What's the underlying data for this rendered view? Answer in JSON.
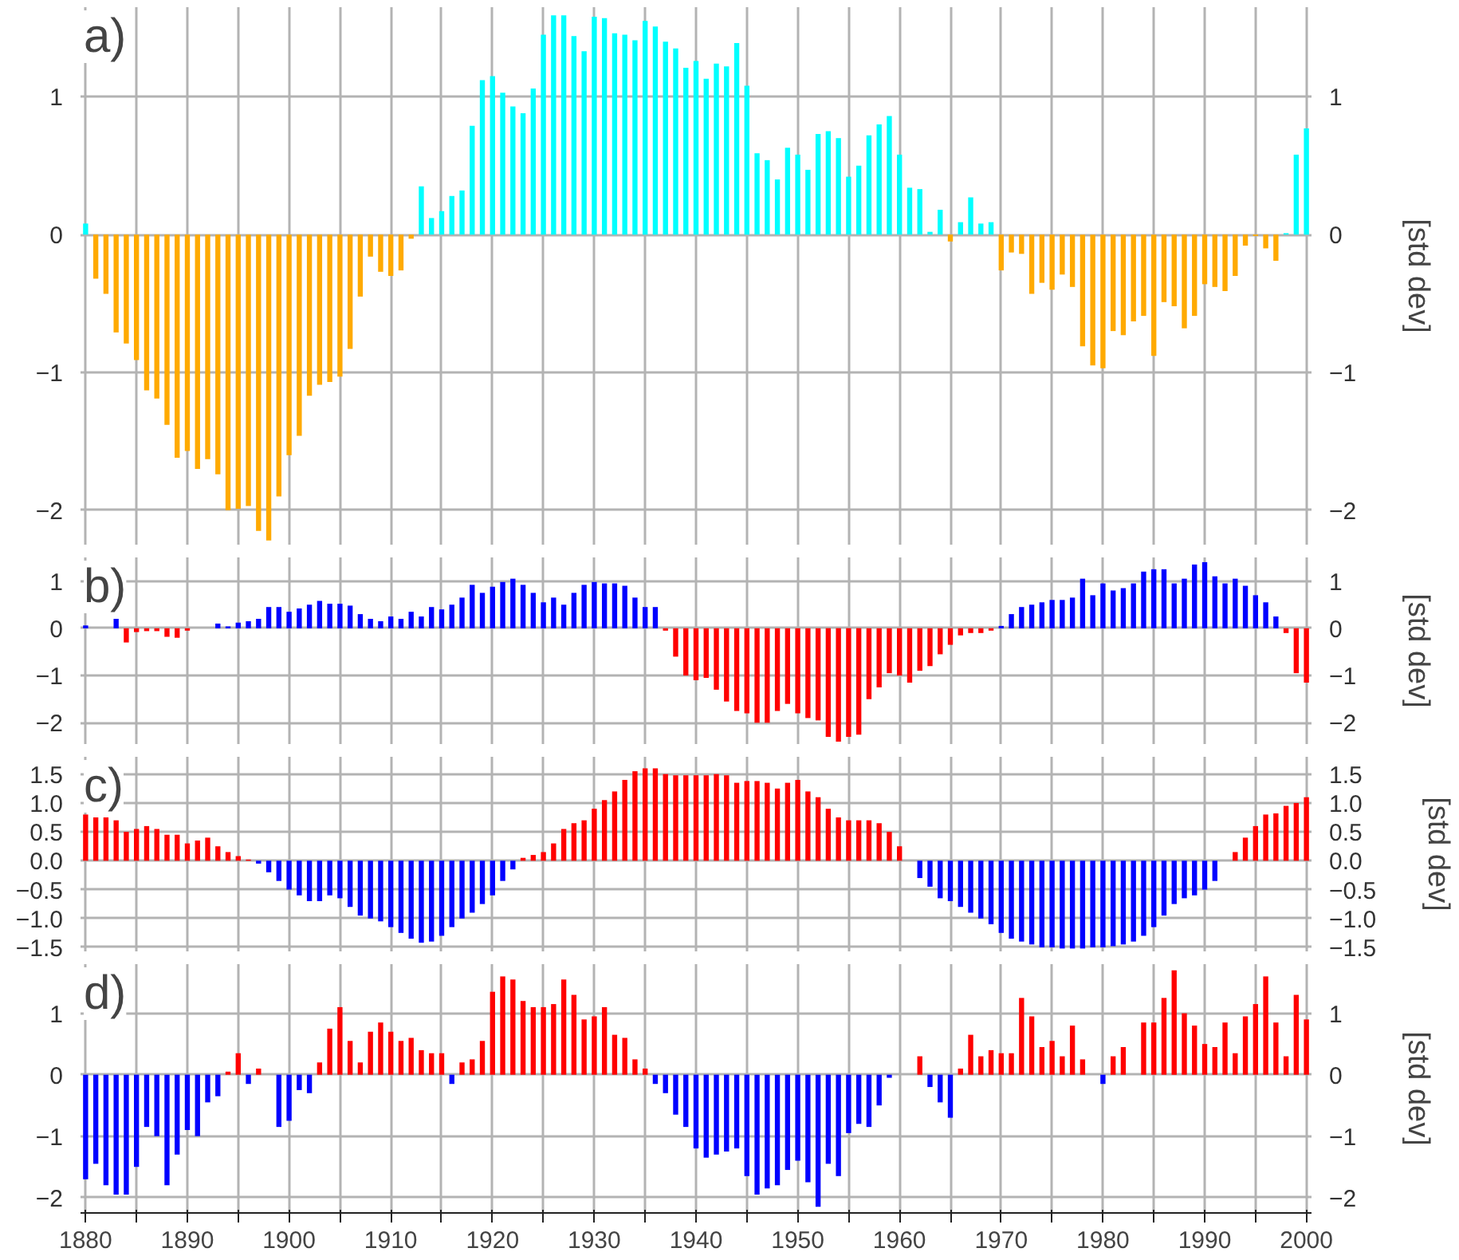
{
  "chart_data": [
    {
      "type": "bar",
      "title": "a)",
      "y2label": "[std dev]",
      "grid": true,
      "tick_labels": "y",
      "xlim": [
        1879.5,
        2000.5
      ],
      "ylim": [
        -2.25,
        1.65
      ],
      "y2lim": [
        -2.25,
        1.65
      ],
      "xticks": [
        1880,
        1885,
        1890,
        1895,
        1900,
        1905,
        1910,
        1915,
        1920,
        1925,
        1930,
        1935,
        1940,
        1945,
        1950,
        1955,
        1960,
        1965,
        1970,
        1975,
        1980,
        1985,
        1990,
        1995,
        2000
      ],
      "yticks": [
        {
          "value": -2,
          "label": "−2"
        },
        {
          "value": -1,
          "label": "−1"
        },
        {
          "value": 0,
          "label": "0"
        },
        {
          "value": 1,
          "label": "1"
        }
      ],
      "y2ticks": [
        {
          "value": -2,
          "label": "−2"
        },
        {
          "value": -1,
          "label": "−1"
        },
        {
          "value": 0,
          "label": "0"
        },
        {
          "value": 1,
          "label": "1"
        }
      ],
      "x": [
        1880,
        1881,
        1882,
        1883,
        1884,
        1885,
        1886,
        1887,
        1888,
        1889,
        1890,
        1891,
        1892,
        1893,
        1894,
        1895,
        1896,
        1897,
        1898,
        1899,
        1900,
        1901,
        1902,
        1903,
        1904,
        1905,
        1906,
        1907,
        1908,
        1909,
        1910,
        1911,
        1912,
        1913,
        1914,
        1915,
        1916,
        1917,
        1918,
        1919,
        1920,
        1921,
        1922,
        1923,
        1924,
        1925,
        1926,
        1927,
        1928,
        1929,
        1930,
        1931,
        1932,
        1933,
        1934,
        1935,
        1936,
        1937,
        1938,
        1939,
        1940,
        1941,
        1942,
        1943,
        1944,
        1945,
        1946,
        1947,
        1948,
        1949,
        1950,
        1951,
        1952,
        1953,
        1954,
        1955,
        1956,
        1957,
        1958,
        1959,
        1960,
        1961,
        1962,
        1963,
        1964,
        1965,
        1966,
        1967,
        1968,
        1969,
        1970,
        1971,
        1972,
        1973,
        1974,
        1975,
        1976,
        1977,
        1978,
        1979,
        1980,
        1981,
        1982,
        1983,
        1984,
        1985,
        1986,
        1987,
        1988,
        1989,
        1990,
        1991,
        1992,
        1993,
        1994,
        1995,
        1996,
        1997,
        1998,
        1999,
        2000
      ],
      "values": [
        0.08,
        -0.32,
        -0.43,
        -0.71,
        -0.79,
        -0.91,
        -1.13,
        -1.19,
        -1.38,
        -1.62,
        -1.57,
        -1.7,
        -1.63,
        -1.74,
        -2.0,
        -1.99,
        -1.97,
        -2.15,
        -2.22,
        -1.9,
        -1.6,
        -1.46,
        -1.17,
        -1.09,
        -1.07,
        -1.03,
        -0.83,
        -0.45,
        -0.16,
        -0.27,
        -0.3,
        -0.26,
        -0.03,
        0.35,
        0.12,
        0.17,
        0.28,
        0.32,
        0.79,
        1.12,
        1.15,
        1.03,
        0.93,
        0.88,
        1.06,
        1.45,
        1.59,
        1.59,
        1.44,
        1.33,
        1.58,
        1.57,
        1.46,
        1.45,
        1.41,
        1.55,
        1.51,
        1.4,
        1.35,
        1.21,
        1.26,
        1.13,
        1.24,
        1.22,
        1.39,
        1.08,
        0.59,
        0.54,
        0.4,
        0.63,
        0.58,
        0.47,
        0.73,
        0.75,
        0.7,
        0.42,
        0.5,
        0.72,
        0.8,
        0.86,
        0.58,
        0.34,
        0.33,
        0.02,
        0.18,
        -0.05,
        0.09,
        0.27,
        0.08,
        0.09,
        -0.26,
        -0.13,
        -0.14,
        -0.43,
        -0.35,
        -0.4,
        -0.29,
        -0.38,
        -0.81,
        -0.95,
        -0.97,
        -0.7,
        -0.73,
        -0.63,
        -0.59,
        -0.88,
        -0.49,
        -0.52,
        -0.68,
        -0.59,
        -0.36,
        -0.38,
        -0.41,
        -0.3,
        -0.08,
        -0.01,
        -0.1,
        -0.19,
        0.01,
        0.58,
        0.77
      ],
      "colors": [
        "#00ffff",
        "#ffaa00",
        "#ffaa00",
        "#ffaa00",
        "#ffaa00",
        "#ffaa00",
        "#ffaa00",
        "#ffaa00",
        "#ffaa00",
        "#ffaa00",
        "#ffaa00",
        "#ffaa00",
        "#ffaa00",
        "#ffaa00",
        "#ffaa00",
        "#ffaa00",
        "#ffaa00",
        "#ffaa00",
        "#ffaa00",
        "#ffaa00",
        "#ffaa00",
        "#ffaa00",
        "#ffaa00",
        "#ffaa00",
        "#ffaa00",
        "#ffaa00",
        "#ffaa00",
        "#ffaa00",
        "#ffaa00",
        "#ffaa00",
        "#ffaa00",
        "#ffaa00",
        "#ffaa00",
        "#00ffff",
        "#00ffff",
        "#00ffff",
        "#00ffff",
        "#00ffff",
        "#00ffff",
        "#00ffff",
        "#00ffff",
        "#00ffff",
        "#00ffff",
        "#00ffff",
        "#00ffff",
        "#00ffff",
        "#00ffff",
        "#00ffff",
        "#00ffff",
        "#00ffff",
        "#00ffff",
        "#00ffff",
        "#00ffff",
        "#00ffff",
        "#00ffff",
        "#00ffff",
        "#00ffff",
        "#00ffff",
        "#00ffff",
        "#00ffff",
        "#00ffff",
        "#00ffff",
        "#00ffff",
        "#00ffff",
        "#00ffff",
        "#00ffff",
        "#00ffff",
        "#00ffff",
        "#00ffff",
        "#00ffff",
        "#00ffff",
        "#00ffff",
        "#00ffff",
        "#00ffff",
        "#00ffff",
        "#00ffff",
        "#00ffff",
        "#00ffff",
        "#00ffff",
        "#00ffff",
        "#00ffff",
        "#00ffff",
        "#00ffff",
        "#00ffff",
        "#00ffff",
        "#ffaa00",
        "#00ffff",
        "#00ffff",
        "#00ffff",
        "#00ffff",
        "#ffaa00",
        "#ffaa00",
        "#ffaa00",
        "#ffaa00",
        "#ffaa00",
        "#ffaa00",
        "#ffaa00",
        "#ffaa00",
        "#ffaa00",
        "#ffaa00",
        "#ffaa00",
        "#ffaa00",
        "#ffaa00",
        "#ffaa00",
        "#ffaa00",
        "#ffaa00",
        "#ffaa00",
        "#ffaa00",
        "#ffaa00",
        "#ffaa00",
        "#ffaa00",
        "#ffaa00",
        "#ffaa00",
        "#ffaa00",
        "#ffaa00",
        "#ffaa00",
        "#ffaa00",
        "#ffaa00",
        "#00ffff",
        "#00ffff",
        "#00ffff"
      ]
    },
    {
      "type": "bar",
      "title": "b)",
      "y2label": "[std dev]",
      "grid": true,
      "tick_labels": "y",
      "xlim": [
        1879.5,
        2000.5
      ],
      "ylim": [
        -2.45,
        1.5
      ],
      "y2lim": [
        -2.45,
        1.5
      ],
      "xticks": [
        1880,
        1885,
        1890,
        1895,
        1900,
        1905,
        1910,
        1915,
        1920,
        1925,
        1930,
        1935,
        1940,
        1945,
        1950,
        1955,
        1960,
        1965,
        1970,
        1975,
        1980,
        1985,
        1990,
        1995,
        2000
      ],
      "yticks": [
        {
          "value": -2,
          "label": "−2"
        },
        {
          "value": -1,
          "label": "−1"
        },
        {
          "value": 0,
          "label": "0"
        },
        {
          "value": 1,
          "label": "1"
        }
      ],
      "y2ticks": [
        {
          "value": -2,
          "label": "−2"
        },
        {
          "value": -1,
          "label": "−1"
        },
        {
          "value": 0,
          "label": "0"
        },
        {
          "value": 1,
          "label": "1"
        }
      ],
      "x": [
        1880,
        1881,
        1882,
        1883,
        1884,
        1885,
        1886,
        1887,
        1888,
        1889,
        1890,
        1891,
        1892,
        1893,
        1894,
        1895,
        1896,
        1897,
        1898,
        1899,
        1900,
        1901,
        1902,
        1903,
        1904,
        1905,
        1906,
        1907,
        1908,
        1909,
        1910,
        1911,
        1912,
        1913,
        1914,
        1915,
        1916,
        1917,
        1918,
        1919,
        1920,
        1921,
        1922,
        1923,
        1924,
        1925,
        1926,
        1927,
        1928,
        1929,
        1930,
        1931,
        1932,
        1933,
        1934,
        1935,
        1936,
        1937,
        1938,
        1939,
        1940,
        1941,
        1942,
        1943,
        1944,
        1945,
        1946,
        1947,
        1948,
        1949,
        1950,
        1951,
        1952,
        1953,
        1954,
        1955,
        1956,
        1957,
        1958,
        1959,
        1960,
        1961,
        1962,
        1963,
        1964,
        1965,
        1966,
        1967,
        1968,
        1969,
        1970,
        1971,
        1972,
        1973,
        1974,
        1975,
        1976,
        1977,
        1978,
        1979,
        1980,
        1981,
        1982,
        1983,
        1984,
        1985,
        1986,
        1987,
        1988,
        1989,
        1990,
        1991,
        1992,
        1993,
        1994,
        1995,
        1996,
        1997,
        1998,
        1999,
        2000
      ],
      "values": [
        0.06,
        0,
        0,
        0.2,
        -0.3,
        -0.08,
        -0.06,
        -0.06,
        -0.18,
        -0.2,
        -0.05,
        0,
        0,
        0.1,
        0.04,
        0.12,
        0.15,
        0.2,
        0.45,
        0.45,
        0.35,
        0.42,
        0.5,
        0.58,
        0.52,
        0.52,
        0.48,
        0.3,
        0.2,
        0.15,
        0.25,
        0.2,
        0.35,
        0.25,
        0.45,
        0.4,
        0.5,
        0.65,
        0.92,
        0.75,
        0.88,
        0.98,
        1.05,
        0.92,
        0.75,
        0.55,
        0.65,
        0.5,
        0.75,
        0.92,
        0.98,
        0.95,
        0.95,
        0.9,
        0.65,
        0.45,
        0.45,
        -0.05,
        -0.6,
        -1.0,
        -1.1,
        -1.05,
        -1.3,
        -1.55,
        -1.75,
        -1.8,
        -2.0,
        -2.0,
        -1.75,
        -1.6,
        -1.8,
        -1.9,
        -1.95,
        -2.3,
        -2.4,
        -2.3,
        -2.25,
        -1.5,
        -1.25,
        -0.95,
        -1.0,
        -1.15,
        -0.9,
        -0.8,
        -0.55,
        -0.35,
        -0.15,
        -0.1,
        -0.1,
        -0.05,
        0.05,
        0.3,
        0.45,
        0.5,
        0.55,
        0.6,
        0.6,
        0.65,
        1.05,
        0.7,
        0.95,
        0.8,
        0.85,
        0.95,
        1.2,
        1.25,
        1.25,
        0.95,
        1.05,
        1.35,
        1.4,
        1.1,
        0.95,
        1.05,
        0.9,
        0.7,
        0.55,
        0.25,
        -0.1,
        -0.95,
        -1.15
      ],
      "colors": [
        "#0000ff",
        "#0000ff",
        "#0000ff",
        "#0000ff",
        "#ff0000",
        "#ff0000",
        "#ff0000",
        "#ff0000",
        "#ff0000",
        "#ff0000",
        "#ff0000",
        "#0000ff",
        "#0000ff",
        "#0000ff",
        "#0000ff",
        "#0000ff",
        "#0000ff",
        "#0000ff",
        "#0000ff",
        "#0000ff",
        "#0000ff",
        "#0000ff",
        "#0000ff",
        "#0000ff",
        "#0000ff",
        "#0000ff",
        "#0000ff",
        "#0000ff",
        "#0000ff",
        "#0000ff",
        "#0000ff",
        "#0000ff",
        "#0000ff",
        "#0000ff",
        "#0000ff",
        "#0000ff",
        "#0000ff",
        "#0000ff",
        "#0000ff",
        "#0000ff",
        "#0000ff",
        "#0000ff",
        "#0000ff",
        "#0000ff",
        "#0000ff",
        "#0000ff",
        "#0000ff",
        "#0000ff",
        "#0000ff",
        "#0000ff",
        "#0000ff",
        "#0000ff",
        "#0000ff",
        "#0000ff",
        "#0000ff",
        "#0000ff",
        "#0000ff",
        "#ff0000",
        "#ff0000",
        "#ff0000",
        "#ff0000",
        "#ff0000",
        "#ff0000",
        "#ff0000",
        "#ff0000",
        "#ff0000",
        "#ff0000",
        "#ff0000",
        "#ff0000",
        "#ff0000",
        "#ff0000",
        "#ff0000",
        "#ff0000",
        "#ff0000",
        "#ff0000",
        "#ff0000",
        "#ff0000",
        "#ff0000",
        "#ff0000",
        "#ff0000",
        "#ff0000",
        "#ff0000",
        "#ff0000",
        "#ff0000",
        "#ff0000",
        "#ff0000",
        "#ff0000",
        "#ff0000",
        "#ff0000",
        "#ff0000",
        "#0000ff",
        "#0000ff",
        "#0000ff",
        "#0000ff",
        "#0000ff",
        "#0000ff",
        "#0000ff",
        "#0000ff",
        "#0000ff",
        "#0000ff",
        "#0000ff",
        "#0000ff",
        "#0000ff",
        "#0000ff",
        "#0000ff",
        "#0000ff",
        "#0000ff",
        "#0000ff",
        "#0000ff",
        "#0000ff",
        "#0000ff",
        "#0000ff",
        "#0000ff",
        "#0000ff",
        "#0000ff",
        "#0000ff",
        "#0000ff",
        "#0000ff",
        "#ff0000",
        "#ff0000",
        "#ff0000"
      ]
    },
    {
      "type": "bar",
      "title": "c)",
      "y2label": "[std dev]",
      "grid": true,
      "tick_labels": "y",
      "xlim": [
        1879.5,
        2000.5
      ],
      "ylim": [
        -1.57,
        1.8
      ],
      "y2lim": [
        -1.57,
        1.8
      ],
      "xticks": [
        1880,
        1885,
        1890,
        1895,
        1900,
        1905,
        1910,
        1915,
        1920,
        1925,
        1930,
        1935,
        1940,
        1945,
        1950,
        1955,
        1960,
        1965,
        1970,
        1975,
        1980,
        1985,
        1990,
        1995,
        2000
      ],
      "yticks": [
        {
          "value": -1.5,
          "label": "−1.5"
        },
        {
          "value": -1,
          "label": "−1.0"
        },
        {
          "value": -0.5,
          "label": "−0.5"
        },
        {
          "value": 0,
          "label": "0.0"
        },
        {
          "value": 0.5,
          "label": "0.5"
        },
        {
          "value": 1,
          "label": "1.0"
        },
        {
          "value": 1.5,
          "label": "1.5"
        }
      ],
      "y2ticks": [
        {
          "value": -1.5,
          "label": "−1.5"
        },
        {
          "value": -1,
          "label": "−1.0"
        },
        {
          "value": -0.5,
          "label": "−0.5"
        },
        {
          "value": 0,
          "label": "0.0"
        },
        {
          "value": 0.5,
          "label": "0.5"
        },
        {
          "value": 1,
          "label": "1.0"
        },
        {
          "value": 1.5,
          "label": "1.5"
        }
      ],
      "x": [
        1880,
        1881,
        1882,
        1883,
        1884,
        1885,
        1886,
        1887,
        1888,
        1889,
        1890,
        1891,
        1892,
        1893,
        1894,
        1895,
        1896,
        1897,
        1898,
        1899,
        1900,
        1901,
        1902,
        1903,
        1904,
        1905,
        1906,
        1907,
        1908,
        1909,
        1910,
        1911,
        1912,
        1913,
        1914,
        1915,
        1916,
        1917,
        1918,
        1919,
        1920,
        1921,
        1922,
        1923,
        1924,
        1925,
        1926,
        1927,
        1928,
        1929,
        1930,
        1931,
        1932,
        1933,
        1934,
        1935,
        1936,
        1937,
        1938,
        1939,
        1940,
        1941,
        1942,
        1943,
        1944,
        1945,
        1946,
        1947,
        1948,
        1949,
        1950,
        1951,
        1952,
        1953,
        1954,
        1955,
        1956,
        1957,
        1958,
        1959,
        1960,
        1961,
        1962,
        1963,
        1964,
        1965,
        1966,
        1967,
        1968,
        1969,
        1970,
        1971,
        1972,
        1973,
        1974,
        1975,
        1976,
        1977,
        1978,
        1979,
        1980,
        1981,
        1982,
        1983,
        1984,
        1985,
        1986,
        1987,
        1988,
        1989,
        1990,
        1991,
        1992,
        1993,
        1994,
        1995,
        1996,
        1997,
        1998,
        1999,
        2000
      ],
      "values": [
        0.8,
        0.75,
        0.75,
        0.7,
        0.5,
        0.55,
        0.6,
        0.55,
        0.45,
        0.45,
        0.3,
        0.35,
        0.4,
        0.25,
        0.15,
        0.08,
        0.02,
        -0.05,
        -0.2,
        -0.35,
        -0.5,
        -0.6,
        -0.7,
        -0.7,
        -0.6,
        -0.65,
        -0.8,
        -0.95,
        -1.0,
        -1.05,
        -1.15,
        -1.25,
        -1.35,
        -1.42,
        -1.4,
        -1.3,
        -1.15,
        -1.0,
        -0.9,
        -0.75,
        -0.6,
        -0.35,
        -0.15,
        0.05,
        0.1,
        0.15,
        0.3,
        0.55,
        0.65,
        0.7,
        0.9,
        1.05,
        1.2,
        1.4,
        1.55,
        1.6,
        1.6,
        1.5,
        1.48,
        1.48,
        1.48,
        1.48,
        1.5,
        1.48,
        1.35,
        1.38,
        1.38,
        1.35,
        1.25,
        1.35,
        1.4,
        1.2,
        1.1,
        0.9,
        0.75,
        0.7,
        0.7,
        0.7,
        0.65,
        0.5,
        0.25,
        0.0,
        -0.3,
        -0.45,
        -0.65,
        -0.7,
        -0.8,
        -0.9,
        -1.0,
        -1.1,
        -1.25,
        -1.35,
        -1.4,
        -1.45,
        -1.5,
        -1.5,
        -1.52,
        -1.52,
        -1.52,
        -1.5,
        -1.5,
        -1.48,
        -1.45,
        -1.4,
        -1.3,
        -1.15,
        -0.95,
        -0.75,
        -0.65,
        -0.6,
        -0.5,
        -0.35,
        0.0,
        0.15,
        0.4,
        0.6,
        0.8,
        0.82,
        0.95,
        1.0,
        1.1
      ],
      "colors": [
        "#ff0000",
        "#ff0000",
        "#ff0000",
        "#ff0000",
        "#ff0000",
        "#ff0000",
        "#ff0000",
        "#ff0000",
        "#ff0000",
        "#ff0000",
        "#ff0000",
        "#ff0000",
        "#ff0000",
        "#ff0000",
        "#ff0000",
        "#ff0000",
        "#ff0000",
        "#0000ff",
        "#0000ff",
        "#0000ff",
        "#0000ff",
        "#0000ff",
        "#0000ff",
        "#0000ff",
        "#0000ff",
        "#0000ff",
        "#0000ff",
        "#0000ff",
        "#0000ff",
        "#0000ff",
        "#0000ff",
        "#0000ff",
        "#0000ff",
        "#0000ff",
        "#0000ff",
        "#0000ff",
        "#0000ff",
        "#0000ff",
        "#0000ff",
        "#0000ff",
        "#0000ff",
        "#0000ff",
        "#0000ff",
        "#ff0000",
        "#ff0000",
        "#ff0000",
        "#ff0000",
        "#ff0000",
        "#ff0000",
        "#ff0000",
        "#ff0000",
        "#ff0000",
        "#ff0000",
        "#ff0000",
        "#ff0000",
        "#ff0000",
        "#ff0000",
        "#ff0000",
        "#ff0000",
        "#ff0000",
        "#ff0000",
        "#ff0000",
        "#ff0000",
        "#ff0000",
        "#ff0000",
        "#ff0000",
        "#ff0000",
        "#ff0000",
        "#ff0000",
        "#ff0000",
        "#ff0000",
        "#ff0000",
        "#ff0000",
        "#ff0000",
        "#ff0000",
        "#ff0000",
        "#ff0000",
        "#ff0000",
        "#ff0000",
        "#ff0000",
        "#ff0000",
        "#ff0000",
        "#0000ff",
        "#0000ff",
        "#0000ff",
        "#0000ff",
        "#0000ff",
        "#0000ff",
        "#0000ff",
        "#0000ff",
        "#0000ff",
        "#0000ff",
        "#0000ff",
        "#0000ff",
        "#0000ff",
        "#0000ff",
        "#0000ff",
        "#0000ff",
        "#0000ff",
        "#0000ff",
        "#0000ff",
        "#0000ff",
        "#0000ff",
        "#0000ff",
        "#0000ff",
        "#0000ff",
        "#0000ff",
        "#0000ff",
        "#0000ff",
        "#0000ff",
        "#0000ff",
        "#0000ff",
        "#ff0000",
        "#ff0000",
        "#ff0000",
        "#ff0000",
        "#ff0000",
        "#ff0000",
        "#ff0000",
        "#ff0000",
        "#ff0000"
      ]
    },
    {
      "type": "bar",
      "title": "d)",
      "y2label": "[std dev]",
      "grid": true,
      "xlim": [
        1879.5,
        2000.5
      ],
      "ylim": [
        -2.25,
        1.8
      ],
      "y2lim": [
        -2.25,
        1.8
      ],
      "xticks": [
        {
          "value": 1880,
          "label": "1880"
        },
        {
          "value": 1885,
          "label": null
        },
        {
          "value": 1890,
          "label": "1890"
        },
        {
          "value": 1895,
          "label": null
        },
        {
          "value": 1900,
          "label": "1900"
        },
        {
          "value": 1905,
          "label": null
        },
        {
          "value": 1910,
          "label": "1910"
        },
        {
          "value": 1915,
          "label": null
        },
        {
          "value": 1920,
          "label": "1920"
        },
        {
          "value": 1925,
          "label": null
        },
        {
          "value": 1930,
          "label": "1930"
        },
        {
          "value": 1935,
          "label": null
        },
        {
          "value": 1940,
          "label": "1940"
        },
        {
          "value": 1945,
          "label": null
        },
        {
          "value": 1950,
          "label": "1950"
        },
        {
          "value": 1955,
          "label": null
        },
        {
          "value": 1960,
          "label": "1960"
        },
        {
          "value": 1965,
          "label": null
        },
        {
          "value": 1970,
          "label": "1970"
        },
        {
          "value": 1975,
          "label": null
        },
        {
          "value": 1980,
          "label": "1980"
        },
        {
          "value": 1985,
          "label": null
        },
        {
          "value": 1990,
          "label": "1990"
        },
        {
          "value": 1995,
          "label": null
        },
        {
          "value": 2000,
          "label": "2000"
        }
      ],
      "yticks": [
        {
          "value": -2,
          "label": "−2"
        },
        {
          "value": -1,
          "label": "−1"
        },
        {
          "value": 0,
          "label": "0"
        },
        {
          "value": 1,
          "label": "1"
        }
      ],
      "y2ticks": [
        {
          "value": -2,
          "label": "−2"
        },
        {
          "value": -1,
          "label": "−1"
        },
        {
          "value": 0,
          "label": "0"
        },
        {
          "value": 1,
          "label": "1"
        }
      ],
      "x": [
        1880,
        1881,
        1882,
        1883,
        1884,
        1885,
        1886,
        1887,
        1888,
        1889,
        1890,
        1891,
        1892,
        1893,
        1894,
        1895,
        1896,
        1897,
        1898,
        1899,
        1900,
        1901,
        1902,
        1903,
        1904,
        1905,
        1906,
        1907,
        1908,
        1909,
        1910,
        1911,
        1912,
        1913,
        1914,
        1915,
        1916,
        1917,
        1918,
        1919,
        1920,
        1921,
        1922,
        1923,
        1924,
        1925,
        1926,
        1927,
        1928,
        1929,
        1930,
        1931,
        1932,
        1933,
        1934,
        1935,
        1936,
        1937,
        1938,
        1939,
        1940,
        1941,
        1942,
        1943,
        1944,
        1945,
        1946,
        1947,
        1948,
        1949,
        1950,
        1951,
        1952,
        1953,
        1954,
        1955,
        1956,
        1957,
        1958,
        1959,
        1960,
        1961,
        1962,
        1963,
        1964,
        1965,
        1966,
        1967,
        1968,
        1969,
        1970,
        1971,
        1972,
        1973,
        1974,
        1975,
        1976,
        1977,
        1978,
        1979,
        1980,
        1981,
        1982,
        1983,
        1984,
        1985,
        1986,
        1987,
        1988,
        1989,
        1990,
        1991,
        1992,
        1993,
        1994,
        1995,
        1996,
        1997,
        1998,
        1999,
        2000
      ],
      "values": [
        -1.7,
        -1.45,
        -1.8,
        -1.95,
        -1.95,
        -1.5,
        -0.85,
        -1.0,
        -1.8,
        -1.3,
        -0.9,
        -1.0,
        -0.45,
        -0.35,
        0.05,
        0.35,
        -0.15,
        0.1,
        0,
        -0.85,
        -0.75,
        -0.25,
        -0.3,
        0.2,
        0.75,
        1.1,
        0.55,
        0.2,
        0.7,
        0.85,
        0.7,
        0.55,
        0.6,
        0.4,
        0.35,
        0.35,
        -0.15,
        0.2,
        0.25,
        0.55,
        1.35,
        1.6,
        1.55,
        1.2,
        1.1,
        1.1,
        1.15,
        1.55,
        1.3,
        0.9,
        0.95,
        1.1,
        0.65,
        0.6,
        0.25,
        0.1,
        -0.15,
        -0.3,
        -0.65,
        -0.85,
        -1.2,
        -1.35,
        -1.3,
        -1.25,
        -1.2,
        -1.65,
        -1.95,
        -1.85,
        -1.8,
        -1.55,
        -1.4,
        -1.75,
        -2.15,
        -1.45,
        -1.65,
        -0.95,
        -0.8,
        -0.85,
        -0.5,
        -0.05,
        0,
        0,
        0.3,
        -0.2,
        -0.45,
        -0.7,
        0.1,
        0.65,
        0.3,
        0.4,
        0.35,
        0.35,
        1.25,
        0.95,
        0.45,
        0.55,
        0.3,
        0.8,
        0.25,
        0,
        -0.15,
        0.3,
        0.45,
        0,
        0.85,
        0.85,
        1.25,
        1.7,
        1.0,
        0.8,
        0.5,
        0.45,
        0.85,
        0.35,
        0.95,
        1.15,
        1.6,
        0.85,
        0.3,
        1.3,
        0.9
      ],
      "colors": [
        "#0000ff",
        "#0000ff",
        "#0000ff",
        "#0000ff",
        "#0000ff",
        "#0000ff",
        "#0000ff",
        "#0000ff",
        "#0000ff",
        "#0000ff",
        "#0000ff",
        "#0000ff",
        "#0000ff",
        "#0000ff",
        "#ff0000",
        "#ff0000",
        "#0000ff",
        "#ff0000",
        "#ff0000",
        "#0000ff",
        "#0000ff",
        "#0000ff",
        "#0000ff",
        "#ff0000",
        "#ff0000",
        "#ff0000",
        "#ff0000",
        "#ff0000",
        "#ff0000",
        "#ff0000",
        "#ff0000",
        "#ff0000",
        "#ff0000",
        "#ff0000",
        "#ff0000",
        "#ff0000",
        "#0000ff",
        "#ff0000",
        "#ff0000",
        "#ff0000",
        "#ff0000",
        "#ff0000",
        "#ff0000",
        "#ff0000",
        "#ff0000",
        "#ff0000",
        "#ff0000",
        "#ff0000",
        "#ff0000",
        "#ff0000",
        "#ff0000",
        "#ff0000",
        "#ff0000",
        "#ff0000",
        "#ff0000",
        "#ff0000",
        "#0000ff",
        "#0000ff",
        "#0000ff",
        "#0000ff",
        "#0000ff",
        "#0000ff",
        "#0000ff",
        "#0000ff",
        "#0000ff",
        "#0000ff",
        "#0000ff",
        "#0000ff",
        "#0000ff",
        "#0000ff",
        "#0000ff",
        "#0000ff",
        "#0000ff",
        "#0000ff",
        "#0000ff",
        "#0000ff",
        "#0000ff",
        "#0000ff",
        "#0000ff",
        "#0000ff",
        "#ff0000",
        "#ff0000",
        "#ff0000",
        "#0000ff",
        "#0000ff",
        "#0000ff",
        "#ff0000",
        "#ff0000",
        "#ff0000",
        "#ff0000",
        "#ff0000",
        "#ff0000",
        "#ff0000",
        "#ff0000",
        "#ff0000",
        "#ff0000",
        "#ff0000",
        "#ff0000",
        "#ff0000",
        "#ff0000",
        "#0000ff",
        "#ff0000",
        "#ff0000",
        "#ff0000",
        "#ff0000",
        "#ff0000",
        "#ff0000",
        "#ff0000",
        "#ff0000",
        "#ff0000",
        "#ff0000",
        "#ff0000",
        "#ff0000",
        "#ff0000",
        "#ff0000",
        "#ff0000",
        "#ff0000",
        "#ff0000",
        "#ff0000",
        "#ff0000",
        "#ff0000"
      ]
    }
  ]
}
